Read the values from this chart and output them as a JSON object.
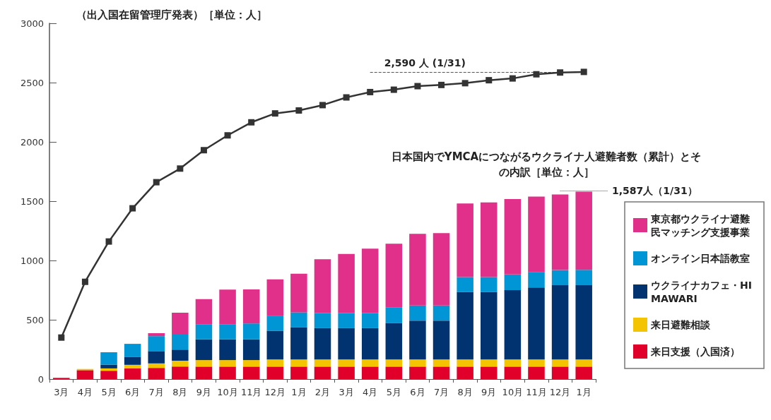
{
  "chart_data": {
    "type": "bar",
    "stacked": true,
    "title": "（出入国在留管理庁発表）［単位：人］",
    "subtitle": "日本国内でYMCAにつながるウクライナ人避難者数（累計）とその内訳［単位：人］",
    "categories": [
      "3月",
      "4月",
      "5月",
      "6月",
      "7月",
      "8月",
      "9月",
      "10月",
      "11月",
      "12月",
      "1月",
      "2月",
      "3月",
      "4月",
      "5月",
      "6月",
      "7月",
      "8月",
      "9月",
      "10月",
      "11月",
      "12月",
      "1月"
    ],
    "series": [
      {
        "name": "来日支援（入国済）",
        "color": "#e0002a",
        "values": [
          10,
          75,
          70,
          90,
          94,
          105,
          105,
          105,
          105,
          105,
          105,
          105,
          105,
          105,
          105,
          105,
          105,
          105,
          105,
          105,
          105,
          105,
          105
        ]
      },
      {
        "name": "来日避難相談",
        "color": "#f5c400",
        "values": [
          0,
          10,
          20,
          30,
          38,
          50,
          55,
          55,
          55,
          60,
          60,
          60,
          60,
          60,
          60,
          60,
          60,
          60,
          60,
          60,
          60,
          60,
          60
        ]
      },
      {
        "name": "ウクライナカフェ・HIMAWARI",
        "color": "#003370",
        "values": [
          0,
          0,
          32,
          68,
          104,
          94,
          175,
          175,
          175,
          242,
          270,
          264,
          264,
          264,
          306,
          328,
          328,
          570,
          570,
          585,
          608,
          626,
          626
        ]
      },
      {
        "name": "オンライン日本語教室",
        "color": "#0096d6",
        "values": [
          0,
          0,
          104,
          109,
          126,
          132,
          128,
          128,
          134,
          128,
          128,
          128,
          128,
          128,
          132,
          128,
          128,
          125,
          125,
          132,
          128,
          128,
          130
        ]
      },
      {
        "name": "東京都ウクライナ避難民マッチング支援事業",
        "color": "#e0308a",
        "values": [
          0,
          0,
          0,
          0,
          25,
          179,
          211,
          292,
          287,
          306,
          325,
          453,
          498,
          542,
          538,
          604,
          609,
          621,
          630,
          636,
          638,
          638,
          660
        ]
      },
      {
        "type": "line",
        "color": "#333333",
        "values": [
          350,
          820,
          1160,
          1440,
          1660,
          1775,
          1930,
          2055,
          2165,
          2240,
          2265,
          2310,
          2375,
          2420,
          2440,
          2470,
          2480,
          2495,
          2520,
          2535,
          2570,
          2585,
          2590
        ]
      }
    ],
    "ylim": [
      0,
      3000
    ],
    "yticks": [
      0,
      500,
      1000,
      1500,
      2000,
      2500,
      3000
    ],
    "ref_lines": [
      {
        "axis": "y",
        "value": 2590,
        "label": "2,590 人 (1/31)",
        "line_style": "dashed"
      },
      {
        "axis": "y",
        "value": 1587,
        "label": "1,587人（1/31）",
        "line_style": "dotted"
      }
    ],
    "marker": "square",
    "grid": false,
    "legend": "right"
  }
}
